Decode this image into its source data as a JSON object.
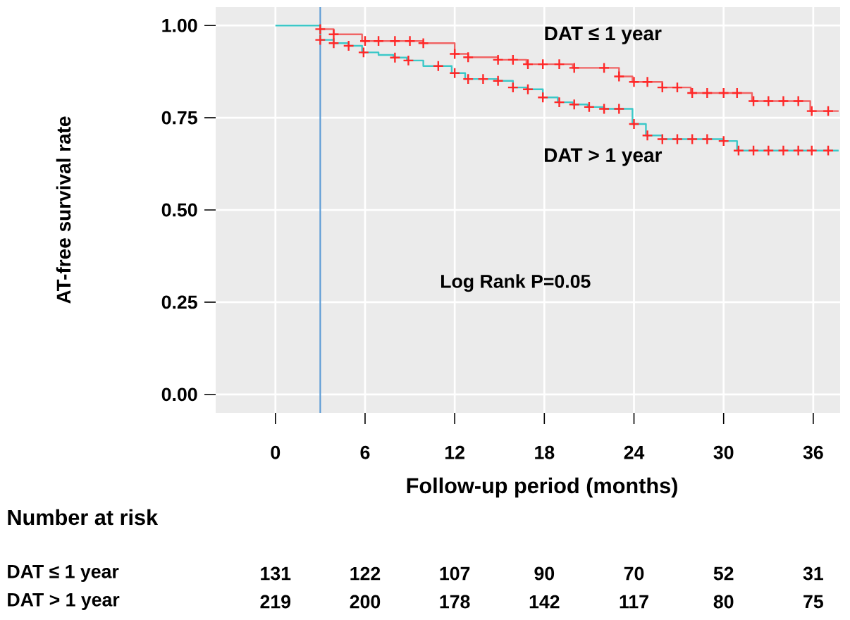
{
  "chart_data": {
    "type": "step",
    "ylabel": "AT-free survival rate",
    "xlabel": "Follow-up period (months)",
    "xlim": [
      -4,
      37.8
    ],
    "ylim": [
      -0.05,
      1.05
    ],
    "xticks": [
      0,
      6,
      12,
      18,
      24,
      30,
      36
    ],
    "yticks": [
      {
        "value": 0,
        "label": "0.00"
      },
      {
        "value": 0.25,
        "label": "0.25"
      },
      {
        "value": 0.5,
        "label": "0.50"
      },
      {
        "value": 0.75,
        "label": "0.75"
      },
      {
        "value": 1,
        "label": "1.00"
      }
    ],
    "grid": true,
    "series": [
      {
        "name": "DAT ≤ 1 year",
        "color": "#f06464",
        "x": [
          3,
          3.9,
          5.8,
          9.9,
          12.0,
          12.9,
          14.9,
          16.8,
          19.9,
          23.0,
          23.9,
          25.9,
          27.8,
          31.9,
          35.8,
          37.7
        ],
        "values": [
          0.99,
          0.976,
          0.958,
          0.952,
          0.923,
          0.914,
          0.907,
          0.895,
          0.885,
          0.862,
          0.847,
          0.832,
          0.817,
          0.795,
          0.768,
          0.768
        ]
      },
      {
        "name": "DAT > 1 year",
        "color": "#3cc8c8",
        "x": [
          0,
          3,
          3.9,
          4.9,
          5.8,
          6.9,
          7.9,
          8.8,
          9.9,
          11.8,
          12.7,
          14.9,
          15.9,
          16.8,
          17.9,
          18.9,
          19.9,
          20.9,
          22.0,
          23.9,
          24.8,
          25.9,
          30.0,
          30.9,
          37.7
        ],
        "values": [
          1.0,
          0.961,
          0.952,
          0.945,
          0.927,
          0.92,
          0.913,
          0.905,
          0.89,
          0.871,
          0.855,
          0.85,
          0.832,
          0.827,
          0.805,
          0.792,
          0.786,
          0.779,
          0.774,
          0.733,
          0.702,
          0.692,
          0.687,
          0.661,
          0.661
        ]
      },
      {
        "color": "#ff2828",
        "type": "scatter",
        "marker": "cross",
        "x": [
          3.0,
          3.9,
          6.0,
          6.9,
          8.0,
          9.0,
          9.9,
          12.0,
          12.9,
          14.9,
          15.9,
          16.9,
          17.9,
          19.0,
          20.0,
          22.0,
          23.0,
          24.0,
          24.9,
          25.9,
          26.9,
          27.9,
          28.9,
          30.0,
          30.9,
          32.0,
          33.0,
          34.0,
          35.0,
          35.9,
          37.0
        ],
        "values": [
          0.99,
          0.976,
          0.958,
          0.958,
          0.958,
          0.958,
          0.952,
          0.923,
          0.914,
          0.907,
          0.907,
          0.895,
          0.895,
          0.895,
          0.885,
          0.885,
          0.862,
          0.847,
          0.847,
          0.832,
          0.832,
          0.817,
          0.817,
          0.817,
          0.817,
          0.795,
          0.795,
          0.795,
          0.795,
          0.768,
          0.768
        ]
      },
      {
        "color": "#ff2828",
        "type": "scatter",
        "marker": "cross",
        "x": [
          3.0,
          3.9,
          4.9,
          5.9,
          8.0,
          8.9,
          10.9,
          12.0,
          12.9,
          13.9,
          14.9,
          15.9,
          16.9,
          17.9,
          19.0,
          20.0,
          21.0,
          22.0,
          23.0,
          24.0,
          24.9,
          25.9,
          26.9,
          27.9,
          28.9,
          30.0,
          31.0,
          32.0,
          33.0,
          34.0,
          35.0,
          35.9,
          37.0
        ],
        "values": [
          0.961,
          0.952,
          0.945,
          0.927,
          0.913,
          0.905,
          0.89,
          0.871,
          0.855,
          0.855,
          0.85,
          0.832,
          0.827,
          0.805,
          0.792,
          0.786,
          0.779,
          0.774,
          0.774,
          0.733,
          0.702,
          0.692,
          0.692,
          0.692,
          0.692,
          0.687,
          0.661,
          0.661,
          0.661,
          0.661,
          0.661,
          0.661,
          0.661
        ]
      }
    ],
    "ref_lines": [
      {
        "axis": "x",
        "value": 3,
        "color": "#5b9bd5"
      }
    ],
    "annotations": [
      "Log Rank P=0.05",
      "Number at risk",
      "DAT ≤ 1 year",
      "131",
      "122",
      "107",
      "90",
      "70",
      "52",
      "31",
      "DAT > 1 year",
      "219",
      "200",
      "178",
      "142",
      "117",
      "80",
      "75"
    ]
  }
}
